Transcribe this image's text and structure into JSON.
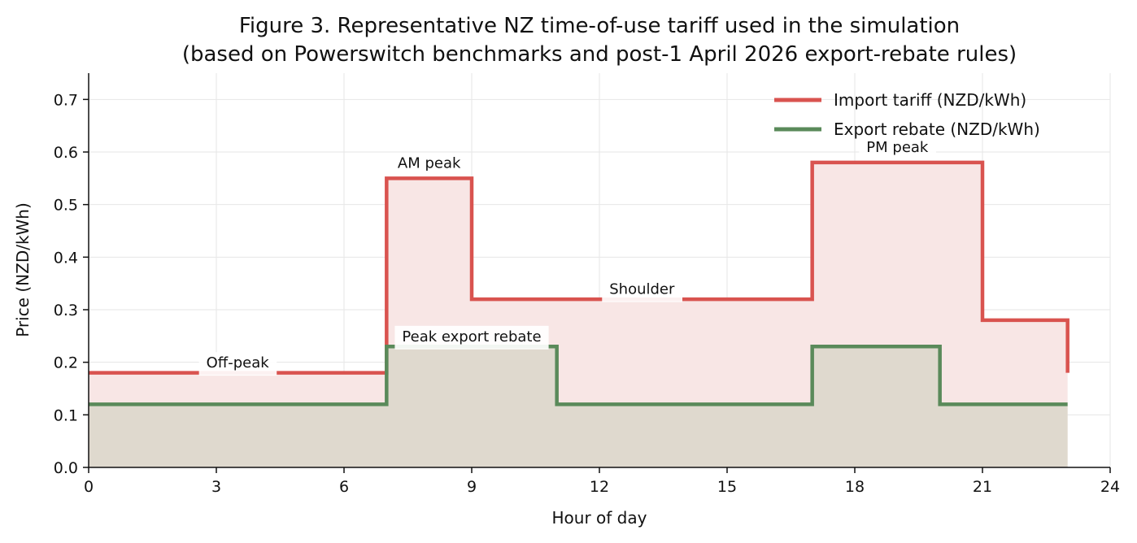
{
  "chart_data": {
    "type": "line",
    "step": "post",
    "title_line1": "Figure 3. Representative NZ time-of-use tariff used in the simulation",
    "title_line2": "(based on Powerswitch benchmarks and post-1 April 2026 export-rebate rules)",
    "xlabel": "Hour of day",
    "ylabel": "Price (NZD/kWh)",
    "xlim": [
      0,
      24
    ],
    "ylim": [
      0,
      0.75
    ],
    "xticks": [
      0,
      3,
      6,
      9,
      12,
      15,
      18,
      21,
      24
    ],
    "yticks": [
      0.0,
      0.1,
      0.2,
      0.3,
      0.4,
      0.5,
      0.6,
      0.7
    ],
    "ytick_labels": [
      "0.0",
      "0.1",
      "0.2",
      "0.3",
      "0.4",
      "0.5",
      "0.6",
      "0.7"
    ],
    "grid": true,
    "legend_position": "top-right",
    "series": [
      {
        "name": "Import tariff (NZD/kWh)",
        "color": "#d9534f",
        "fill": "#f8e6e5",
        "x": [
          0,
          7,
          9,
          17,
          21,
          23
        ],
        "values": [
          0.18,
          0.55,
          0.32,
          0.58,
          0.28,
          0.18
        ]
      },
      {
        "name": "Export rebate (NZD/kWh)",
        "color": "#5a8a5a",
        "fill": "#dcd8cc",
        "x": [
          0,
          7,
          11,
          17,
          20,
          23
        ],
        "values": [
          0.12,
          0.23,
          0.12,
          0.23,
          0.12,
          0.12
        ]
      }
    ],
    "annotations": [
      {
        "text": "Off-peak",
        "x": 3.5,
        "y": 0.19
      },
      {
        "text": "AM peak",
        "x": 8.0,
        "y": 0.57
      },
      {
        "text": "Shoulder",
        "x": 13.0,
        "y": 0.33
      },
      {
        "text": "PM peak",
        "x": 19.0,
        "y": 0.6
      },
      {
        "text": "Peak export rebate",
        "x": 9.0,
        "y": 0.24
      }
    ]
  }
}
